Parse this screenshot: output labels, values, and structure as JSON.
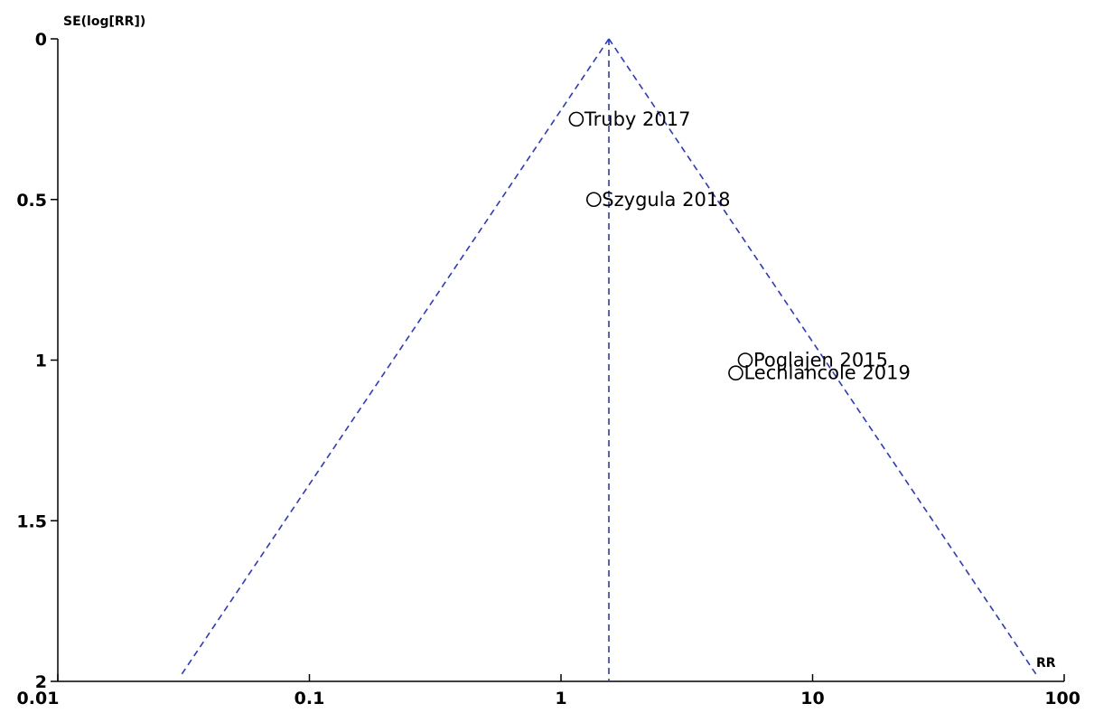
{
  "chart_data": {
    "type": "scatter",
    "subtype": "funnel-plot",
    "xlabel": "RR",
    "ylabel": "SE(log[RR])",
    "x_scale": "log",
    "xlim": [
      0.01,
      100
    ],
    "ylim": [
      0,
      2
    ],
    "y_reversed": true,
    "x_ticks": [
      {
        "value": 0.01,
        "label": "0.01"
      },
      {
        "value": 0.1,
        "label": "0.1"
      },
      {
        "value": 1,
        "label": "1"
      },
      {
        "value": 10,
        "label": "10"
      },
      {
        "value": 100,
        "label": "100"
      }
    ],
    "y_ticks": [
      {
        "value": 0,
        "label": "0"
      },
      {
        "value": 0.5,
        "label": "0.5"
      },
      {
        "value": 1,
        "label": "1"
      },
      {
        "value": 1.5,
        "label": "1.5"
      },
      {
        "value": 2,
        "label": "2"
      }
    ],
    "pooled_estimate": 1.55,
    "studies": [
      {
        "name": "Truby 2017",
        "rr": 1.15,
        "se": 0.25
      },
      {
        "name": "Szygula 2018",
        "rr": 1.35,
        "se": 0.5
      },
      {
        "name": "Poglajen 2015",
        "rr": 5.4,
        "se": 1.0
      },
      {
        "name": "Lechlancole 2019",
        "rr": 4.95,
        "se": 1.04
      }
    ],
    "grid": false,
    "colors": {
      "funnel": "#2b36d8",
      "axes": "#000000",
      "points": "#000000"
    }
  }
}
